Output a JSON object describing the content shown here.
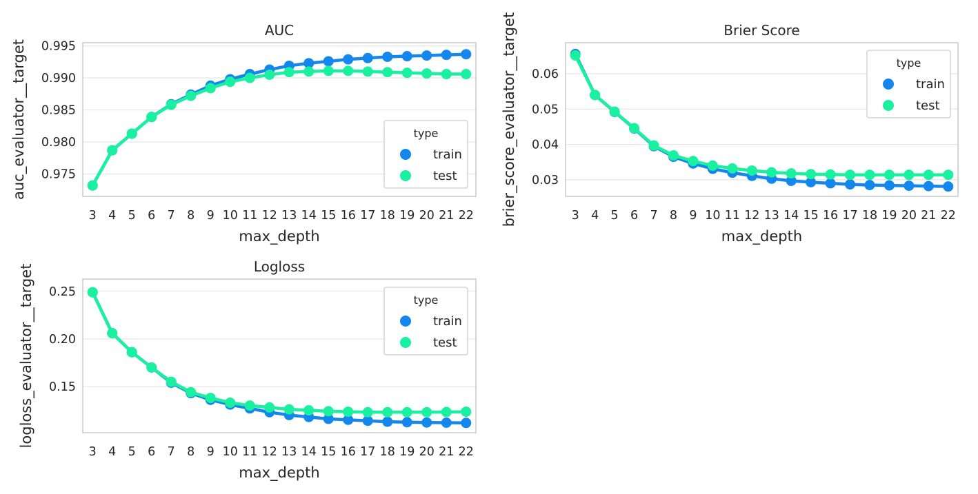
{
  "colors": {
    "train": "#1487ee",
    "test": "#19f0a0",
    "grid": "#e6e6e6",
    "spine": "#cccccc",
    "text": "#262626"
  },
  "chart_data": [
    {
      "type": "line",
      "title": "AUC",
      "xlabel": "max_depth",
      "ylabel": "auc_evaluator__target",
      "categories": [
        "3",
        "4",
        "5",
        "6",
        "7",
        "8",
        "9",
        "10",
        "11",
        "12",
        "13",
        "14",
        "15",
        "16",
        "17",
        "18",
        "19",
        "20",
        "21",
        "22"
      ],
      "yticks": [
        0.975,
        0.98,
        0.985,
        0.99,
        0.995
      ],
      "ytick_labels": [
        "0.975",
        "0.980",
        "0.985",
        "0.990",
        "0.995"
      ],
      "ylim": [
        0.9715,
        0.9955
      ],
      "grid": true,
      "legend": {
        "title": "type",
        "position": "bottom-right",
        "entries": [
          "train",
          "test"
        ]
      },
      "series": [
        {
          "name": "train",
          "values": [
            0.9732,
            0.9787,
            0.9813,
            0.9839,
            0.9859,
            0.9874,
            0.9888,
            0.9898,
            0.9906,
            0.9913,
            0.9919,
            0.9923,
            0.9926,
            0.9929,
            0.9931,
            0.9933,
            0.9934,
            0.9935,
            0.9936,
            0.9937
          ]
        },
        {
          "name": "test",
          "values": [
            0.9732,
            0.9787,
            0.9813,
            0.9839,
            0.9858,
            0.9872,
            0.9884,
            0.9894,
            0.99,
            0.9905,
            0.9909,
            0.991,
            0.9911,
            0.9911,
            0.991,
            0.9909,
            0.9908,
            0.9907,
            0.9906,
            0.9906
          ]
        }
      ]
    },
    {
      "type": "line",
      "title": "Brier Score",
      "xlabel": "max_depth",
      "ylabel": "brier_score_evaluator__target",
      "categories": [
        "3",
        "4",
        "5",
        "6",
        "7",
        "8",
        "9",
        "10",
        "11",
        "12",
        "13",
        "14",
        "15",
        "16",
        "17",
        "18",
        "19",
        "20",
        "21",
        "22"
      ],
      "yticks": [
        0.03,
        0.04,
        0.05,
        0.06
      ],
      "ytick_labels": [
        "0.03",
        "0.04",
        "0.05",
        "0.06"
      ],
      "ylim": [
        0.0253,
        0.0688
      ],
      "grid": true,
      "legend": {
        "title": "type",
        "position": "top-right",
        "entries": [
          "train",
          "test"
        ]
      },
      "series": [
        {
          "name": "train",
          "values": [
            0.0656,
            0.054,
            0.0492,
            0.0445,
            0.0395,
            0.0365,
            0.0346,
            0.0331,
            0.032,
            0.0311,
            0.0303,
            0.0297,
            0.0293,
            0.029,
            0.0287,
            0.0285,
            0.0284,
            0.0283,
            0.0282,
            0.0281
          ]
        },
        {
          "name": "test",
          "values": [
            0.0652,
            0.054,
            0.0493,
            0.0446,
            0.0397,
            0.0369,
            0.0353,
            0.034,
            0.0332,
            0.0326,
            0.0321,
            0.0318,
            0.0316,
            0.0315,
            0.0314,
            0.0314,
            0.0314,
            0.0314,
            0.0314,
            0.0314
          ]
        }
      ]
    },
    {
      "type": "line",
      "title": "Logloss",
      "xlabel": "max_depth",
      "ylabel": "logloss_evaluator__target",
      "categories": [
        "3",
        "4",
        "5",
        "6",
        "7",
        "8",
        "9",
        "10",
        "11",
        "12",
        "13",
        "14",
        "15",
        "16",
        "17",
        "18",
        "19",
        "20",
        "21",
        "22"
      ],
      "yticks": [
        0.15,
        0.2,
        0.25
      ],
      "ytick_labels": [
        "0.15",
        "0.20",
        "0.25"
      ],
      "ylim": [
        0.1015,
        0.2629
      ],
      "grid": true,
      "legend": {
        "title": "type",
        "position": "top-right",
        "entries": [
          "train",
          "test"
        ]
      },
      "series": [
        {
          "name": "train",
          "values": [
            0.249,
            0.206,
            0.186,
            0.17,
            0.154,
            0.143,
            0.136,
            0.131,
            0.127,
            0.123,
            0.12,
            0.118,
            0.116,
            0.115,
            0.114,
            0.113,
            0.1125,
            0.1122,
            0.112,
            0.1118
          ]
        },
        {
          "name": "test",
          "values": [
            0.249,
            0.206,
            0.186,
            0.17,
            0.155,
            0.144,
            0.138,
            0.133,
            0.13,
            0.128,
            0.126,
            0.125,
            0.124,
            0.1235,
            0.123,
            0.123,
            0.123,
            0.123,
            0.1232,
            0.1235
          ]
        }
      ]
    }
  ]
}
